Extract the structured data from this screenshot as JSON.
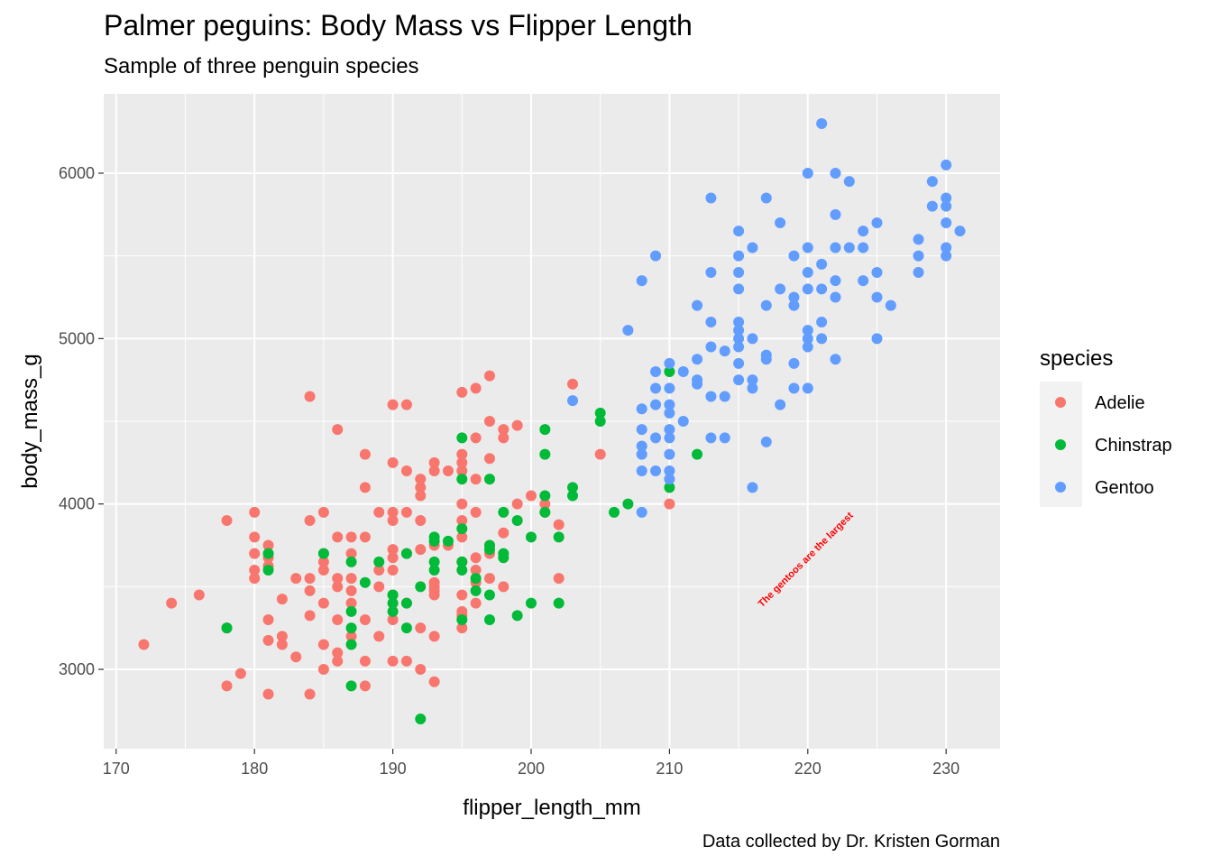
{
  "chart_data": {
    "type": "scatter",
    "title": "Palmer peguins: Body Mass vs Flipper Length",
    "subtitle": "Sample of three penguin species",
    "caption": "Data collected by Dr. Kristen Gorman",
    "xlabel": "flipper_length_mm",
    "ylabel": "body_mass_g",
    "xlim": [
      169.1,
      233.9
    ],
    "ylim": [
      2520,
      6480
    ],
    "xticks": [
      170,
      180,
      190,
      200,
      210,
      220,
      230
    ],
    "yticks": [
      3000,
      4000,
      5000,
      6000
    ],
    "grid": true,
    "legend": {
      "title": "species",
      "position": "right"
    },
    "annotation": {
      "text": "The gentoos are the largest",
      "x": 220,
      "y": 3650,
      "angle": 45,
      "color": "#ff0000"
    },
    "series": [
      {
        "name": "Adelie",
        "color": "#F8766D",
        "points": [
          [
            172,
            3150
          ],
          [
            174,
            3400
          ],
          [
            176,
            3450
          ],
          [
            178,
            3900
          ],
          [
            178,
            3250
          ],
          [
            178,
            2900
          ],
          [
            179,
            2975
          ],
          [
            180,
            3950
          ],
          [
            180,
            3800
          ],
          [
            180,
            3700
          ],
          [
            180,
            3600
          ],
          [
            180,
            3550
          ],
          [
            181,
            3750
          ],
          [
            181,
            3675
          ],
          [
            181,
            3625
          ],
          [
            181,
            3300
          ],
          [
            181,
            3175
          ],
          [
            181,
            2850
          ],
          [
            182,
            3425
          ],
          [
            182,
            3200
          ],
          [
            182,
            3150
          ],
          [
            183,
            3550
          ],
          [
            183,
            3075
          ],
          [
            184,
            4650
          ],
          [
            184,
            3900
          ],
          [
            184,
            3550
          ],
          [
            184,
            3475
          ],
          [
            184,
            3325
          ],
          [
            184,
            2850
          ],
          [
            185,
            3950
          ],
          [
            185,
            3700
          ],
          [
            185,
            3650
          ],
          [
            185,
            3600
          ],
          [
            185,
            3400
          ],
          [
            185,
            3150
          ],
          [
            185,
            3000
          ],
          [
            186,
            4450
          ],
          [
            186,
            3800
          ],
          [
            186,
            3550
          ],
          [
            186,
            3500
          ],
          [
            186,
            3300
          ],
          [
            186,
            3100
          ],
          [
            186,
            3050
          ],
          [
            187,
            3800
          ],
          [
            187,
            3700
          ],
          [
            187,
            3550
          ],
          [
            187,
            3475
          ],
          [
            187,
            3400
          ],
          [
            187,
            3200
          ],
          [
            188,
            4300
          ],
          [
            188,
            4100
          ],
          [
            188,
            3800
          ],
          [
            188,
            3300
          ],
          [
            188,
            3050
          ],
          [
            188,
            2900
          ],
          [
            189,
            3950
          ],
          [
            189,
            3600
          ],
          [
            189,
            3500
          ],
          [
            189,
            3200
          ],
          [
            190,
            4600
          ],
          [
            190,
            4250
          ],
          [
            190,
            3950
          ],
          [
            190,
            3900
          ],
          [
            190,
            3725
          ],
          [
            190,
            3675
          ],
          [
            190,
            3600
          ],
          [
            190,
            3450
          ],
          [
            190,
            3300
          ],
          [
            190,
            3050
          ],
          [
            191,
            4600
          ],
          [
            191,
            4200
          ],
          [
            191,
            3950
          ],
          [
            191,
            3700
          ],
          [
            191,
            3400
          ],
          [
            191,
            3050
          ],
          [
            192,
            4150
          ],
          [
            192,
            4100
          ],
          [
            192,
            4050
          ],
          [
            192,
            3900
          ],
          [
            192,
            3725
          ],
          [
            192,
            3250
          ],
          [
            192,
            3000
          ],
          [
            193,
            4250
          ],
          [
            193,
            4200
          ],
          [
            193,
            3750
          ],
          [
            193,
            3525
          ],
          [
            193,
            3500
          ],
          [
            193,
            3475
          ],
          [
            193,
            3450
          ],
          [
            193,
            3200
          ],
          [
            193,
            2925
          ],
          [
            194,
            4200
          ],
          [
            194,
            3750
          ],
          [
            195,
            4675
          ],
          [
            195,
            4300
          ],
          [
            195,
            4250
          ],
          [
            195,
            4200
          ],
          [
            195,
            4000
          ],
          [
            195,
            3900
          ],
          [
            195,
            3800
          ],
          [
            195,
            3650
          ],
          [
            195,
            3450
          ],
          [
            195,
            3350
          ],
          [
            195,
            3325
          ],
          [
            195,
            3250
          ],
          [
            196,
            4700
          ],
          [
            196,
            4400
          ],
          [
            196,
            4150
          ],
          [
            196,
            3950
          ],
          [
            196,
            3675
          ],
          [
            196,
            3600
          ],
          [
            196,
            3525
          ],
          [
            196,
            3400
          ],
          [
            197,
            4775
          ],
          [
            197,
            4500
          ],
          [
            197,
            4275
          ],
          [
            197,
            3750
          ],
          [
            197,
            3700
          ],
          [
            197,
            3550
          ],
          [
            198,
            4450
          ],
          [
            198,
            4400
          ],
          [
            198,
            3825
          ],
          [
            198,
            3500
          ],
          [
            199,
            4475
          ],
          [
            199,
            4000
          ],
          [
            200,
            4050
          ],
          [
            201,
            4000
          ],
          [
            201,
            3950
          ],
          [
            202,
            3875
          ],
          [
            202,
            3550
          ],
          [
            203,
            4725
          ],
          [
            205,
            4300
          ],
          [
            210,
            4000
          ]
        ]
      },
      {
        "name": "Chinstrap",
        "color": "#00BA38",
        "points": [
          [
            178,
            3250
          ],
          [
            181,
            3700
          ],
          [
            181,
            3600
          ],
          [
            185,
            3700
          ],
          [
            187,
            3650
          ],
          [
            187,
            3350
          ],
          [
            187,
            3250
          ],
          [
            187,
            3150
          ],
          [
            187,
            2900
          ],
          [
            188,
            3525
          ],
          [
            189,
            3650
          ],
          [
            190,
            3450
          ],
          [
            190,
            3400
          ],
          [
            190,
            3350
          ],
          [
            191,
            3700
          ],
          [
            191,
            3400
          ],
          [
            191,
            3250
          ],
          [
            192,
            3500
          ],
          [
            192,
            2700
          ],
          [
            193,
            3800
          ],
          [
            193,
            3775
          ],
          [
            193,
            3650
          ],
          [
            193,
            3600
          ],
          [
            194,
            3775
          ],
          [
            195,
            4400
          ],
          [
            195,
            4150
          ],
          [
            195,
            3850
          ],
          [
            195,
            3650
          ],
          [
            195,
            3600
          ],
          [
            195,
            3300
          ],
          [
            196,
            3550
          ],
          [
            196,
            3475
          ],
          [
            197,
            4150
          ],
          [
            197,
            3750
          ],
          [
            197,
            3725
          ],
          [
            197,
            3450
          ],
          [
            197,
            3300
          ],
          [
            198,
            3950
          ],
          [
            198,
            3700
          ],
          [
            198,
            3675
          ],
          [
            199,
            3900
          ],
          [
            199,
            3325
          ],
          [
            200,
            3800
          ],
          [
            200,
            3400
          ],
          [
            201,
            4450
          ],
          [
            201,
            4300
          ],
          [
            201,
            4050
          ],
          [
            201,
            3950
          ],
          [
            202,
            3800
          ],
          [
            202,
            3400
          ],
          [
            203,
            4100
          ],
          [
            203,
            4050
          ],
          [
            205,
            4550
          ],
          [
            205,
            4500
          ],
          [
            206,
            3950
          ],
          [
            207,
            4000
          ],
          [
            210,
            4800
          ],
          [
            210,
            4100
          ],
          [
            212,
            4300
          ]
        ]
      },
      {
        "name": "Gentoo",
        "color": "#619CFF",
        "points": [
          [
            203,
            4625
          ],
          [
            207,
            5050
          ],
          [
            208,
            5350
          ],
          [
            208,
            4575
          ],
          [
            208,
            4450
          ],
          [
            208,
            4350
          ],
          [
            208,
            4300
          ],
          [
            208,
            4200
          ],
          [
            208,
            3950
          ],
          [
            209,
            5500
          ],
          [
            209,
            4800
          ],
          [
            209,
            4700
          ],
          [
            209,
            4600
          ],
          [
            209,
            4400
          ],
          [
            209,
            4200
          ],
          [
            210,
            4850
          ],
          [
            210,
            4700
          ],
          [
            210,
            4600
          ],
          [
            210,
            4550
          ],
          [
            210,
            4450
          ],
          [
            210,
            4400
          ],
          [
            210,
            4300
          ],
          [
            210,
            4200
          ],
          [
            210,
            4150
          ],
          [
            211,
            4800
          ],
          [
            211,
            4500
          ],
          [
            212,
            5200
          ],
          [
            212,
            4875
          ],
          [
            212,
            4750
          ],
          [
            212,
            4725
          ],
          [
            213,
            5850
          ],
          [
            213,
            5400
          ],
          [
            213,
            5100
          ],
          [
            213,
            4950
          ],
          [
            213,
            4650
          ],
          [
            213,
            4400
          ],
          [
            214,
            4925
          ],
          [
            214,
            4650
          ],
          [
            214,
            4400
          ],
          [
            215,
            5650
          ],
          [
            215,
            5500
          ],
          [
            215,
            5400
          ],
          [
            215,
            5300
          ],
          [
            215,
            5100
          ],
          [
            215,
            5050
          ],
          [
            215,
            5000
          ],
          [
            215,
            4950
          ],
          [
            215,
            4850
          ],
          [
            215,
            4750
          ],
          [
            216,
            5550
          ],
          [
            216,
            5000
          ],
          [
            216,
            4750
          ],
          [
            216,
            4700
          ],
          [
            216,
            4100
          ],
          [
            217,
            5850
          ],
          [
            217,
            5200
          ],
          [
            217,
            4900
          ],
          [
            217,
            4875
          ],
          [
            217,
            4375
          ],
          [
            218,
            5700
          ],
          [
            218,
            5300
          ],
          [
            218,
            4600
          ],
          [
            219,
            5500
          ],
          [
            219,
            5250
          ],
          [
            219,
            5200
          ],
          [
            219,
            4850
          ],
          [
            219,
            4700
          ],
          [
            220,
            6000
          ],
          [
            220,
            5550
          ],
          [
            220,
            5400
          ],
          [
            220,
            5300
          ],
          [
            220,
            5050
          ],
          [
            220,
            5000
          ],
          [
            220,
            4950
          ],
          [
            220,
            4700
          ],
          [
            221,
            6300
          ],
          [
            221,
            5450
          ],
          [
            221,
            5300
          ],
          [
            221,
            5100
          ],
          [
            221,
            5000
          ],
          [
            222,
            6000
          ],
          [
            222,
            5750
          ],
          [
            222,
            5550
          ],
          [
            222,
            5350
          ],
          [
            222,
            5250
          ],
          [
            222,
            4875
          ],
          [
            223,
            5950
          ],
          [
            223,
            5550
          ],
          [
            224,
            5650
          ],
          [
            224,
            5550
          ],
          [
            224,
            5350
          ],
          [
            225,
            5700
          ],
          [
            225,
            5400
          ],
          [
            225,
            5250
          ],
          [
            225,
            5000
          ],
          [
            226,
            5200
          ],
          [
            228,
            5600
          ],
          [
            228,
            5500
          ],
          [
            228,
            5400
          ],
          [
            229,
            5950
          ],
          [
            229,
            5800
          ],
          [
            230,
            6050
          ],
          [
            230,
            5850
          ],
          [
            230,
            5800
          ],
          [
            230,
            5700
          ],
          [
            230,
            5550
          ],
          [
            230,
            5500
          ],
          [
            231,
            5650
          ]
        ]
      }
    ]
  }
}
